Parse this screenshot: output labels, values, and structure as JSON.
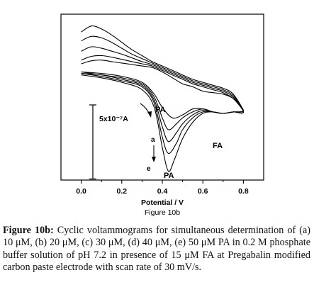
{
  "figure": {
    "sublabel": "Figure 10b",
    "caption_label": "Figure 10b:",
    "caption_text": " Cyclic voltammograms for simultaneous determination of (a) 10 μM, (b) 20 μM, (c) 30 μM, (d) 40 μM, (e) 50 μM PA in 0.2 M phosphate buffer solution of pH 7.2 in presence of 15 μM FA at Pregabalin modified carbon paste electrode with scan rate of 30 mV/s."
  },
  "chart_data": {
    "type": "line",
    "xlabel": "Potential / V",
    "ylabel": "",
    "xlim": [
      -0.1,
      0.9
    ],
    "ylim": [
      -7.4,
      3.8
    ],
    "xticks": [
      0.0,
      0.2,
      0.4,
      0.6,
      0.8
    ],
    "xtick_labels": [
      "0.0",
      "0.2",
      "0.4",
      "0.6",
      "0.8"
    ],
    "y_units": "1e-7 A",
    "y_axis_hidden": true,
    "grid": false,
    "scale_bar": {
      "label": "5x10⁻⁷A",
      "value": 5
    },
    "annotations": {
      "arrow_a": "a",
      "arrow_e": "e",
      "pa_upper": "PA",
      "pa_lower": "PA",
      "fa": "FA"
    },
    "series": [
      {
        "forward": {
          "x": [
            0.0,
            0.1,
            0.2,
            0.3,
            0.36,
            0.4,
            0.45,
            0.5,
            0.55,
            0.6,
            0.65,
            0.7,
            0.75,
            0.8
          ],
          "y": [
            -0.1,
            -0.2,
            -0.4,
            -0.8,
            -1.6,
            -2.5,
            -3.2,
            -3.0,
            -2.6,
            -2.6,
            -2.8,
            -2.9,
            -2.8,
            -2.7
          ]
        },
        "reverse": {
          "x": [
            0.8,
            0.75,
            0.7,
            0.65,
            0.6,
            0.55,
            0.5,
            0.45,
            0.4,
            0.35,
            0.3,
            0.25,
            0.2,
            0.15,
            0.1,
            0.05,
            0.0
          ],
          "y": [
            -2.7,
            -1.9,
            -1.6,
            -1.5,
            -1.4,
            -1.1,
            -0.9,
            -0.5,
            -0.1,
            0.2,
            0.3,
            0.4,
            0.5,
            0.6,
            0.7,
            0.65,
            0.45
          ]
        }
      },
      {
        "forward": {
          "x": [
            0.0,
            0.1,
            0.2,
            0.3,
            0.36,
            0.4,
            0.43,
            0.47,
            0.5,
            0.55,
            0.6,
            0.65,
            0.7,
            0.75,
            0.8
          ],
          "y": [
            -0.1,
            -0.3,
            -0.5,
            -0.9,
            -1.8,
            -3.2,
            -4.0,
            -3.6,
            -3.2,
            -2.8,
            -2.6,
            -2.8,
            -2.9,
            -2.8,
            -2.8
          ]
        },
        "reverse": {
          "x": [
            0.8,
            0.75,
            0.7,
            0.65,
            0.6,
            0.55,
            0.5,
            0.45,
            0.4,
            0.35,
            0.3,
            0.25,
            0.2,
            0.15,
            0.1,
            0.05,
            0.0
          ],
          "y": [
            -2.8,
            -1.9,
            -1.5,
            -1.3,
            -1.1,
            -0.9,
            -0.6,
            -0.3,
            0.0,
            0.3,
            0.45,
            0.6,
            0.75,
            0.9,
            1.0,
            0.95,
            0.7
          ]
        }
      },
      {
        "forward": {
          "x": [
            0.0,
            0.1,
            0.2,
            0.3,
            0.36,
            0.4,
            0.43,
            0.47,
            0.5,
            0.55,
            0.6,
            0.65,
            0.7,
            0.75,
            0.8
          ],
          "y": [
            -0.2,
            -0.3,
            -0.6,
            -1.0,
            -2.0,
            -3.8,
            -4.8,
            -4.2,
            -3.6,
            -3.0,
            -2.7,
            -2.8,
            -2.9,
            -2.8,
            -2.8
          ]
        },
        "reverse": {
          "x": [
            0.8,
            0.75,
            0.7,
            0.65,
            0.6,
            0.55,
            0.5,
            0.45,
            0.4,
            0.35,
            0.3,
            0.25,
            0.2,
            0.15,
            0.1,
            0.05,
            0.0
          ],
          "y": [
            -2.8,
            -1.8,
            -1.4,
            -1.2,
            -1.0,
            -0.8,
            -0.5,
            -0.2,
            0.1,
            0.4,
            0.6,
            0.85,
            1.1,
            1.3,
            1.5,
            1.6,
            1.3
          ]
        }
      },
      {
        "forward": {
          "x": [
            0.0,
            0.1,
            0.2,
            0.3,
            0.36,
            0.4,
            0.43,
            0.47,
            0.5,
            0.55,
            0.6,
            0.65,
            0.7,
            0.75,
            0.8
          ],
          "y": [
            -0.2,
            -0.4,
            -0.7,
            -1.1,
            -2.2,
            -4.5,
            -5.6,
            -4.9,
            -4.0,
            -3.2,
            -2.8,
            -2.8,
            -2.9,
            -2.8,
            -2.8
          ]
        },
        "reverse": {
          "x": [
            0.8,
            0.75,
            0.7,
            0.65,
            0.6,
            0.55,
            0.5,
            0.45,
            0.4,
            0.35,
            0.3,
            0.25,
            0.2,
            0.15,
            0.1,
            0.05,
            0.0
          ],
          "y": [
            -2.8,
            -1.7,
            -1.3,
            -1.1,
            -0.9,
            -0.7,
            -0.4,
            -0.1,
            0.2,
            0.5,
            0.8,
            1.1,
            1.5,
            1.9,
            2.2,
            2.3,
            2.0
          ]
        }
      },
      {
        "forward": {
          "x": [
            0.0,
            0.1,
            0.2,
            0.3,
            0.36,
            0.4,
            0.43,
            0.46,
            0.5,
            0.55,
            0.6,
            0.65,
            0.7,
            0.75,
            0.8
          ],
          "y": [
            -0.3,
            -0.5,
            -0.8,
            -1.3,
            -2.5,
            -5.2,
            -6.8,
            -6.0,
            -4.6,
            -3.5,
            -2.9,
            -2.8,
            -2.9,
            -2.8,
            -2.8
          ]
        },
        "reverse": {
          "x": [
            0.8,
            0.75,
            0.7,
            0.65,
            0.6,
            0.55,
            0.5,
            0.45,
            0.4,
            0.35,
            0.3,
            0.25,
            0.2,
            0.15,
            0.1,
            0.05,
            0.0
          ],
          "y": [
            -2.8,
            -1.6,
            -1.2,
            -1.0,
            -0.8,
            -0.6,
            -0.3,
            0.0,
            0.3,
            0.6,
            1.0,
            1.4,
            1.9,
            2.4,
            2.8,
            3.0,
            2.6
          ]
        }
      }
    ]
  }
}
